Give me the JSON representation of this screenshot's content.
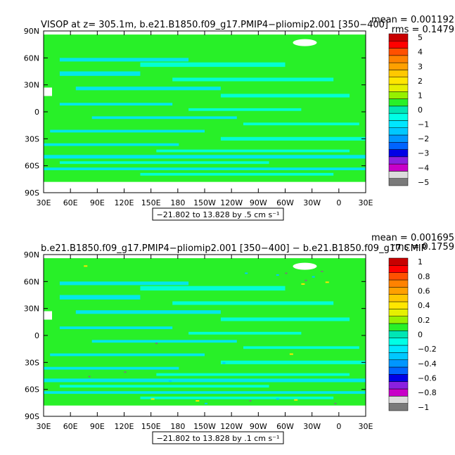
{
  "chart_data": [
    {
      "type": "heatmap",
      "title": "VISOP at z= 305.1m, b.e21.B1850.f09_g17.PMIP4−pliomip2.001 [350−400]",
      "stats": {
        "mean": "mean = 0.001192",
        "rms": "rms = 0.1479"
      },
      "contour_info": "−21.802 to 13.828 by .5 cm s⁻¹",
      "x_ticks": [
        "30E",
        "60E",
        "90E",
        "120E",
        "150E",
        "180",
        "150W",
        "120W",
        "90W",
        "60W",
        "30W",
        "0",
        "30E"
      ],
      "y_ticks": [
        "90N",
        "60N",
        "30N",
        "0",
        "30S",
        "60S",
        "90S"
      ],
      "xlim": [
        30,
        390
      ],
      "ylim": [
        -90,
        90
      ],
      "colorbar": {
        "labels": [
          "5",
          "4",
          "3",
          "2",
          "1",
          "0",
          "−1",
          "−2",
          "−3",
          "−4",
          "−5"
        ],
        "colors": [
          "#7a7a7a",
          "#dcdcdc",
          "#c800c8",
          "#8a20e0",
          "#0000e6",
          "#0064ff",
          "#0096ff",
          "#00c8ff",
          "#00e6ff",
          "#00ffe6",
          "#00e6b4",
          "#28f028",
          "#96f000",
          "#e6f000",
          "#ffe600",
          "#ffc800",
          "#ffa000",
          "#ff8200",
          "#ff5000",
          "#ff0000",
          "#c80000"
        ]
      }
    },
    {
      "type": "heatmap",
      "title": "b.e21.B1850.f09_g17.PMIP4−pliomip2.001 [350−400] − b.e21.B1850.f09_g17.CMIP",
      "stats": {
        "mean": "mean = 0.001695",
        "rms": "rms = 0.1759"
      },
      "contour_info": "−21.802 to 13.828 by .1 cm s⁻¹",
      "x_ticks": [
        "30E",
        "60E",
        "90E",
        "120E",
        "150E",
        "180",
        "150W",
        "120W",
        "90W",
        "60W",
        "30W",
        "0",
        "30E"
      ],
      "y_ticks": [
        "90N",
        "60N",
        "30N",
        "0",
        "30S",
        "60S",
        "90S"
      ],
      "xlim": [
        30,
        390
      ],
      "ylim": [
        -90,
        90
      ],
      "colorbar": {
        "labels": [
          "1",
          "0.8",
          "0.6",
          "0.4",
          "0.2",
          "0",
          "−0.2",
          "−0.4",
          "−0.6",
          "−0.8",
          "−1"
        ],
        "colors": [
          "#7a7a7a",
          "#dcdcdc",
          "#c800c8",
          "#8a20e0",
          "#0000e6",
          "#0064ff",
          "#0096ff",
          "#00c8ff",
          "#00e6ff",
          "#00ffe6",
          "#00e6b4",
          "#28f028",
          "#96f000",
          "#e6f000",
          "#ffe600",
          "#ffc800",
          "#ffa000",
          "#ff8200",
          "#ff5000",
          "#ff0000",
          "#c80000"
        ]
      }
    }
  ],
  "colors": {
    "base_green": "#28f028",
    "cyan": "#00ffe6",
    "light_cyan": "#00e6ff",
    "land": "#ffffff"
  }
}
